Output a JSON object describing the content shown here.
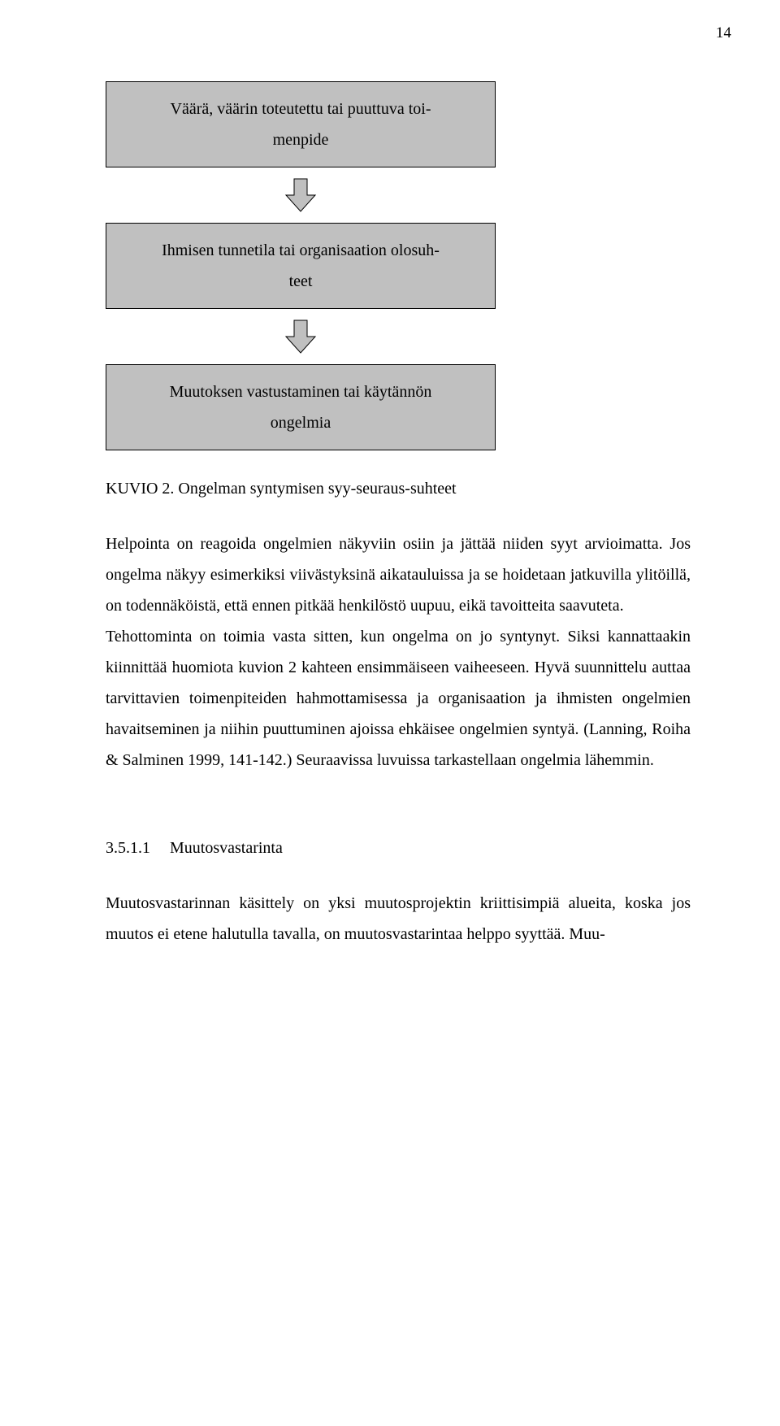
{
  "page_number": "14",
  "diagram": {
    "box_bg": "#c0c0c0",
    "box_border": "#000000",
    "arrow_fill": "#c0c0c0",
    "arrow_stroke": "#000000",
    "boxes": [
      "Väärä, väärin toteutettu tai puuttuva toi-\nmenpide",
      "Ihmisen tunnetila tai organisaation olosuh-\nteet",
      "Muutoksen vastustaminen tai käytännön\nongelmia"
    ]
  },
  "caption": "KUVIO 2. Ongelman syntymisen syy-seuraus-suhteet",
  "paragraph1": "Helpointa on reagoida ongelmien näkyviin osiin ja jättää niiden syyt arvioimatta. Jos ongelma näkyy esimerkiksi viivästyksinä aikatauluissa ja se hoidetaan jatkuvilla ylitöillä, on todennäköistä, että ennen pitkää henkilöstö uupuu, eikä tavoitteita saavuteta.",
  "paragraph2": "Tehottominta on toimia vasta sitten, kun ongelma on jo syntynyt. Siksi kannattaakin kiinnittää huomiota kuvion 2 kahteen ensimmäiseen vaiheeseen. Hyvä suunnittelu auttaa tarvittavien toimenpiteiden hahmottamisessa ja organisaation ja ihmisten ongelmien havaitseminen ja niihin puuttuminen ajoissa ehkäisee ongelmien syntyä. (Lanning, Roiha & Salminen 1999, 141-142.) Seuraavissa luvuissa tarkastellaan ongelmia lähemmin.",
  "section": {
    "number": "3.5.1.1",
    "title": "Muutosvastarinta"
  },
  "paragraph3": "Muutosvastarinnan käsittely on yksi muutosprojektin kriittisimpiä alueita, koska jos muutos ei etene halutulla tavalla, on muutosvastarintaa helppo syyttää. Muu-"
}
